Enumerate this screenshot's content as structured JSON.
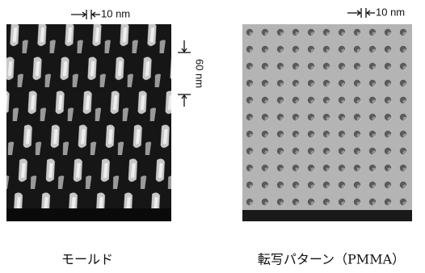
{
  "left_image": {
    "scale_top": "10 nm",
    "scale_side": "60 nm",
    "caption": "モールド"
  },
  "right_image": {
    "scale_top": "10 nm",
    "caption": "転写パターン（PMMA）"
  }
}
